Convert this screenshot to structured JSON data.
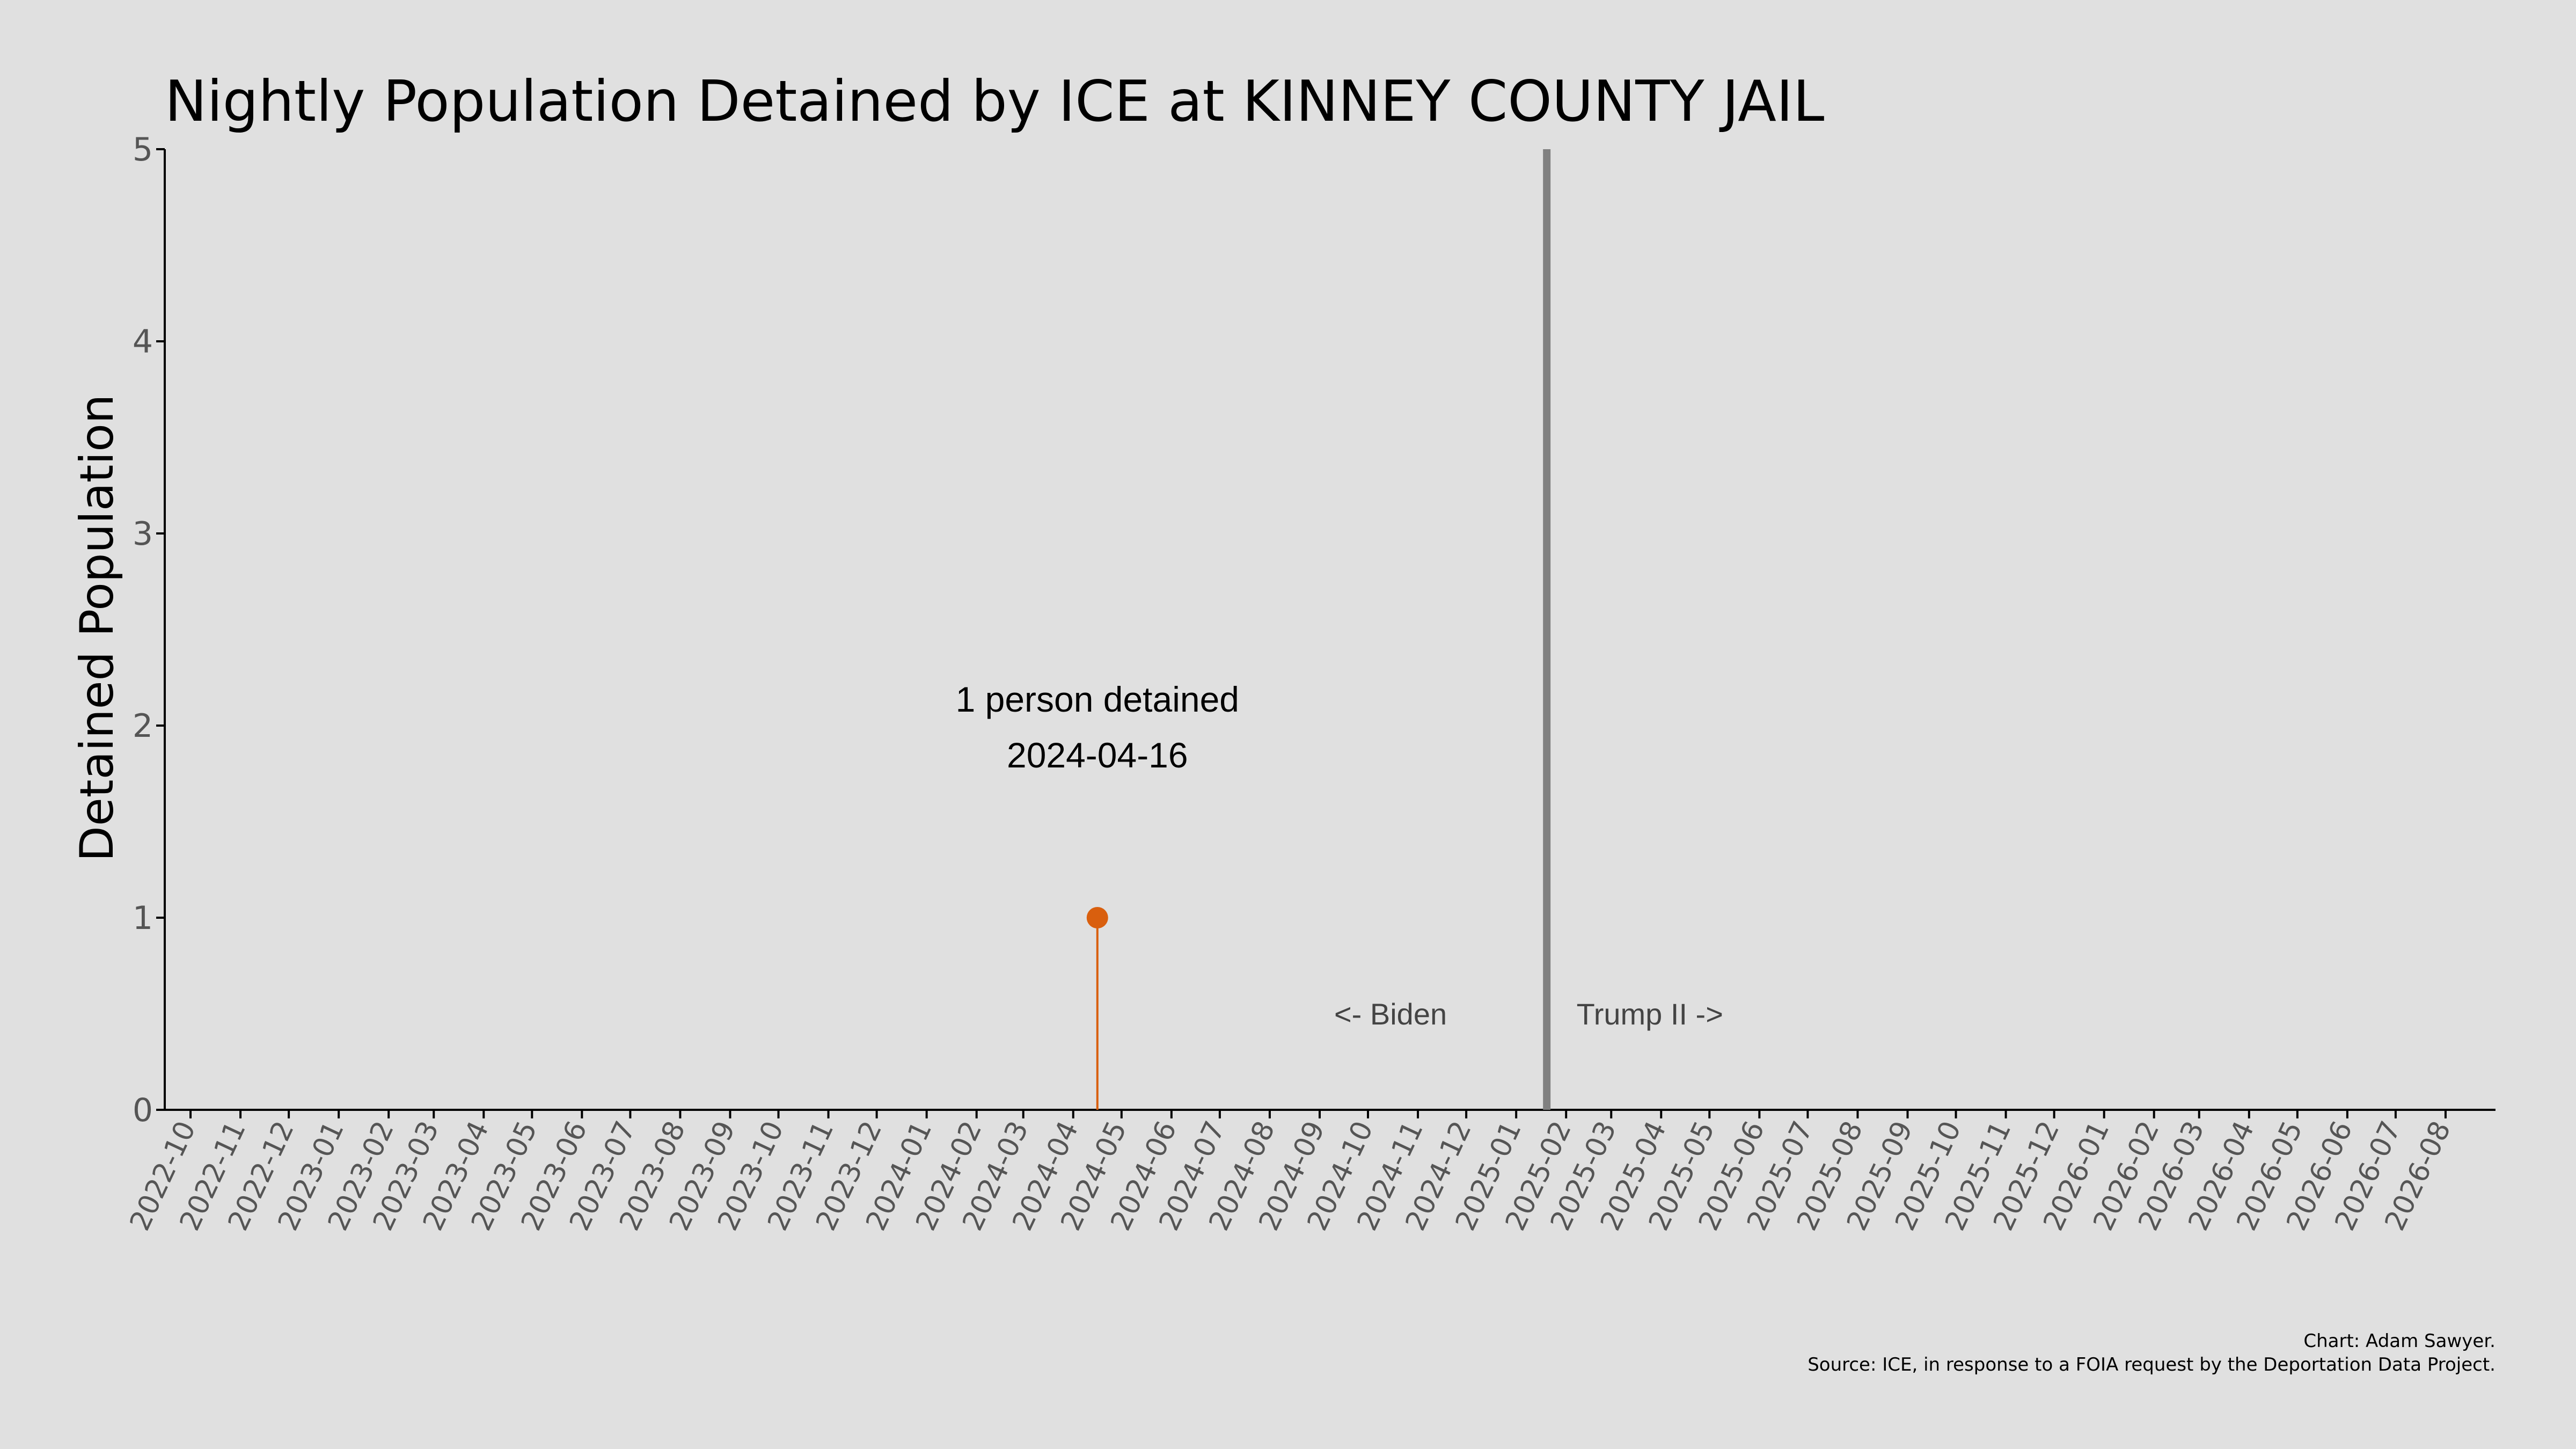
{
  "chart_data": {
    "type": "lollipop",
    "title": "Nightly Population Detained by ICE at KINNEY COUNTY JAIL",
    "ylabel": "Detained Population",
    "xlabel": "",
    "ylim": [
      0,
      5
    ],
    "yticks": [
      "0",
      "1",
      "2",
      "3",
      "4",
      "5"
    ],
    "xlim": [
      "2022-09-15",
      "2026-09-01"
    ],
    "xticks": [
      "2022-10",
      "2022-11",
      "2022-12",
      "2023-01",
      "2023-02",
      "2023-03",
      "2023-04",
      "2023-05",
      "2023-06",
      "2023-07",
      "2023-08",
      "2023-09",
      "2023-10",
      "2023-11",
      "2023-12",
      "2024-01",
      "2024-02",
      "2024-03",
      "2024-04",
      "2024-05",
      "2024-06",
      "2024-07",
      "2024-08",
      "2024-09",
      "2024-10",
      "2024-11",
      "2024-12",
      "2025-01",
      "2025-02",
      "2025-03",
      "2025-04",
      "2025-05",
      "2025-06",
      "2025-07",
      "2025-08",
      "2025-09",
      "2025-10",
      "2025-11",
      "2025-12",
      "2026-01",
      "2026-02",
      "2026-03",
      "2026-04",
      "2026-05",
      "2026-06",
      "2026-07",
      "2026-08"
    ],
    "points": [
      {
        "date": "2024-04-16",
        "value": 1,
        "color": "#d95f0e"
      }
    ],
    "annotation": {
      "line1": "1 person detained",
      "line2": "2024-04-16",
      "date": "2024-04-16",
      "value": 2.05
    },
    "divider": {
      "date": "2025-01-20",
      "color": "#808080"
    },
    "eras": [
      {
        "label": "<- Biden",
        "date": "2024-10-15",
        "value": 0.5
      },
      {
        "label": "Trump II ->",
        "date": "2025-03-25",
        "value": 0.5
      }
    ],
    "grid": false,
    "caption": {
      "line1": "Chart: Adam Sawyer.",
      "line2": "Source: ICE, in response to a FOIA request by the Deportation Data Project."
    }
  }
}
